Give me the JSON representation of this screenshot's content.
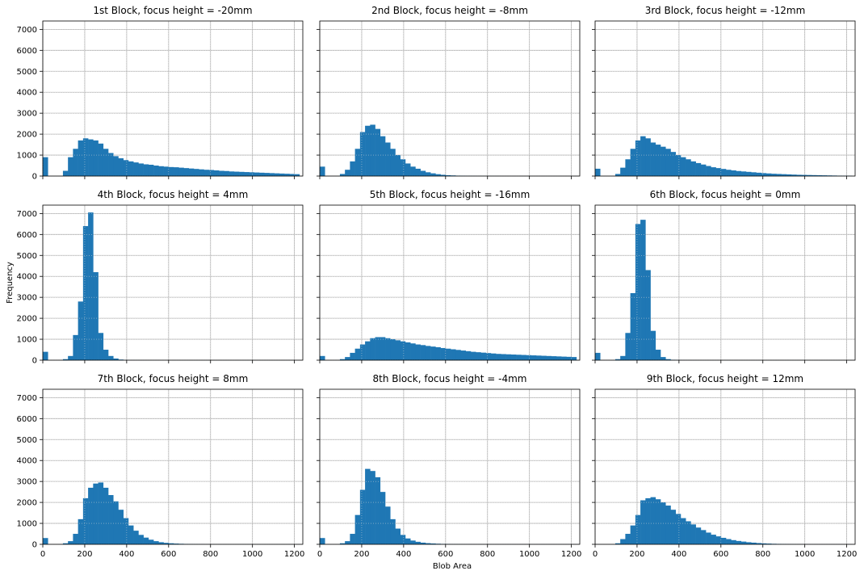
{
  "figure": {
    "xlabel": "Blob Area",
    "ylabel": "Frequency",
    "xlim": [
      0,
      1240
    ],
    "ylim": [
      0,
      7400
    ],
    "xticks": [
      0,
      200,
      400,
      600,
      800,
      1000,
      1200
    ],
    "yticks": [
      0,
      1000,
      2000,
      3000,
      4000,
      5000,
      6000,
      7000
    ],
    "bar_color": "#1f77b4",
    "grid": true,
    "shared_axes": true
  },
  "chart_data": [
    {
      "type": "bar",
      "title": "1st Block, focus height = -20mm",
      "bin_width": 24,
      "bin_starts": [
        0,
        24,
        48,
        72,
        96,
        120,
        144,
        168,
        192,
        216,
        240,
        264,
        288,
        312,
        336,
        360,
        384,
        408,
        432,
        456,
        480,
        504,
        528,
        552,
        576,
        600,
        624,
        648,
        672,
        696,
        720,
        744,
        768,
        792,
        816,
        840,
        864,
        888,
        912,
        936,
        960,
        984,
        1008,
        1032,
        1056,
        1080,
        1104,
        1128,
        1152,
        1176,
        1200
      ],
      "values": [
        900,
        0,
        0,
        0,
        250,
        900,
        1300,
        1700,
        1800,
        1750,
        1700,
        1550,
        1300,
        1100,
        950,
        850,
        760,
        700,
        650,
        600,
        560,
        540,
        500,
        470,
        450,
        430,
        420,
        400,
        380,
        360,
        340,
        320,
        300,
        290,
        270,
        250,
        240,
        220,
        210,
        200,
        190,
        180,
        170,
        160,
        150,
        140,
        130,
        120,
        110,
        100,
        90
      ]
    },
    {
      "type": "bar",
      "title": "2nd Block, focus height = -8mm",
      "bin_width": 24,
      "bin_starts": [
        0,
        24,
        48,
        72,
        96,
        120,
        144,
        168,
        192,
        216,
        240,
        264,
        288,
        312,
        336,
        360,
        384,
        408,
        432,
        456,
        480,
        504,
        528,
        552,
        576,
        600,
        624,
        648,
        672,
        696,
        720,
        744,
        768,
        792,
        816,
        840,
        864,
        888,
        912,
        936,
        960,
        984,
        1008,
        1032,
        1056,
        1080,
        1104,
        1128,
        1152,
        1176,
        1200
      ],
      "values": [
        450,
        0,
        0,
        0,
        100,
        300,
        700,
        1300,
        2100,
        2400,
        2450,
        2250,
        1900,
        1600,
        1300,
        1000,
        800,
        600,
        450,
        350,
        250,
        180,
        130,
        90,
        60,
        40,
        30,
        20,
        15,
        10,
        8,
        6,
        5,
        4,
        3,
        3,
        2,
        2,
        2,
        2,
        2,
        2,
        2,
        2,
        2,
        2,
        2,
        2,
        2,
        2,
        2
      ]
    },
    {
      "type": "bar",
      "title": "3rd Block, focus height = -12mm",
      "bin_width": 24,
      "bin_starts": [
        0,
        24,
        48,
        72,
        96,
        120,
        144,
        168,
        192,
        216,
        240,
        264,
        288,
        312,
        336,
        360,
        384,
        408,
        432,
        456,
        480,
        504,
        528,
        552,
        576,
        600,
        624,
        648,
        672,
        696,
        720,
        744,
        768,
        792,
        816,
        840,
        864,
        888,
        912,
        936,
        960,
        984,
        1008,
        1032,
        1056,
        1080,
        1104,
        1128,
        1152,
        1176,
        1200
      ],
      "values": [
        350,
        0,
        0,
        0,
        100,
        400,
        800,
        1300,
        1700,
        1900,
        1800,
        1600,
        1500,
        1400,
        1300,
        1150,
        1000,
        900,
        800,
        700,
        620,
        550,
        480,
        420,
        380,
        340,
        300,
        270,
        240,
        220,
        200,
        180,
        160,
        140,
        125,
        110,
        100,
        90,
        80,
        70,
        60,
        55,
        50,
        45,
        40,
        35,
        30,
        25,
        20,
        18,
        15
      ]
    },
    {
      "type": "bar",
      "title": "4th Block, focus height = 4mm",
      "bin_width": 24,
      "bin_starts": [
        0,
        24,
        48,
        72,
        96,
        120,
        144,
        168,
        192,
        216,
        240,
        264,
        288,
        312,
        336,
        360,
        384,
        408,
        432,
        456,
        480,
        504,
        528,
        552,
        576,
        600,
        624,
        648,
        672,
        696,
        720,
        744,
        768,
        792,
        816,
        840,
        864,
        888,
        912,
        936,
        960,
        984,
        1008,
        1032,
        1056,
        1080,
        1104,
        1128,
        1152,
        1176,
        1200
      ],
      "values": [
        400,
        0,
        0,
        0,
        50,
        200,
        1200,
        2800,
        6400,
        7050,
        4200,
        1300,
        500,
        200,
        80,
        30,
        10,
        5,
        3,
        2,
        1,
        1,
        1,
        1,
        1,
        1,
        1,
        1,
        1,
        1,
        1,
        1,
        1,
        1,
        1,
        1,
        1,
        1,
        1,
        1,
        1,
        1,
        1,
        1,
        1,
        1,
        1,
        1,
        1,
        1,
        1
      ]
    },
    {
      "type": "bar",
      "title": "5th Block, focus height = -16mm",
      "bin_width": 24,
      "bin_starts": [
        0,
        24,
        48,
        72,
        96,
        120,
        144,
        168,
        192,
        216,
        240,
        264,
        288,
        312,
        336,
        360,
        384,
        408,
        432,
        456,
        480,
        504,
        528,
        552,
        576,
        600,
        624,
        648,
        672,
        696,
        720,
        744,
        768,
        792,
        816,
        840,
        864,
        888,
        912,
        936,
        960,
        984,
        1008,
        1032,
        1056,
        1080,
        1104,
        1128,
        1152,
        1176,
        1200
      ],
      "values": [
        200,
        0,
        0,
        0,
        50,
        150,
        350,
        550,
        750,
        900,
        1050,
        1100,
        1100,
        1050,
        1000,
        950,
        900,
        850,
        800,
        750,
        720,
        680,
        650,
        620,
        580,
        550,
        520,
        490,
        460,
        430,
        400,
        380,
        360,
        340,
        320,
        300,
        290,
        280,
        270,
        260,
        250,
        240,
        230,
        220,
        210,
        200,
        190,
        180,
        170,
        160,
        150
      ]
    },
    {
      "type": "bar",
      "title": "6th Block, focus height = 0mm",
      "bin_width": 24,
      "bin_starts": [
        0,
        24,
        48,
        72,
        96,
        120,
        144,
        168,
        192,
        216,
        240,
        264,
        288,
        312,
        336,
        360,
        384,
        408,
        432,
        456,
        480,
        504,
        528,
        552,
        576,
        600,
        624,
        648,
        672,
        696,
        720,
        744,
        768,
        792,
        816,
        840,
        864,
        888,
        912,
        936,
        960,
        984,
        1008,
        1032,
        1056,
        1080,
        1104,
        1128,
        1152,
        1176,
        1200
      ],
      "values": [
        350,
        0,
        0,
        0,
        50,
        200,
        1300,
        3200,
        6500,
        6700,
        4300,
        1400,
        500,
        150,
        50,
        20,
        10,
        5,
        3,
        2,
        1,
        1,
        1,
        1,
        1,
        1,
        1,
        1,
        1,
        1,
        1,
        1,
        1,
        1,
        1,
        1,
        1,
        1,
        1,
        1,
        1,
        1,
        1,
        1,
        1,
        1,
        1,
        1,
        1,
        1,
        1
      ]
    },
    {
      "type": "bar",
      "title": "7th Block, focus height = 8mm",
      "bin_width": 24,
      "bin_starts": [
        0,
        24,
        48,
        72,
        96,
        120,
        144,
        168,
        192,
        216,
        240,
        264,
        288,
        312,
        336,
        360,
        384,
        408,
        432,
        456,
        480,
        504,
        528,
        552,
        576,
        600,
        624,
        648,
        672,
        696,
        720,
        744,
        768,
        792,
        816,
        840,
        864,
        888,
        912,
        936,
        960,
        984,
        1008,
        1032,
        1056,
        1080,
        1104,
        1128,
        1152,
        1176,
        1200
      ],
      "values": [
        300,
        0,
        0,
        0,
        50,
        150,
        500,
        1200,
        2200,
        2700,
        2900,
        2950,
        2700,
        2350,
        2050,
        1650,
        1250,
        900,
        650,
        450,
        320,
        220,
        150,
        100,
        70,
        50,
        35,
        25,
        18,
        12,
        8,
        5,
        3,
        2,
        1,
        1,
        1,
        1,
        1,
        1,
        1,
        1,
        1,
        1,
        1,
        1,
        1,
        1,
        1,
        1,
        1
      ]
    },
    {
      "type": "bar",
      "title": "8th Block, focus height = -4mm",
      "bin_width": 24,
      "bin_starts": [
        0,
        24,
        48,
        72,
        96,
        120,
        144,
        168,
        192,
        216,
        240,
        264,
        288,
        312,
        336,
        360,
        384,
        408,
        432,
        456,
        480,
        504,
        528,
        552,
        576,
        600,
        624,
        648,
        672,
        696,
        720,
        744,
        768,
        792,
        816,
        840,
        864,
        888,
        912,
        936,
        960,
        984,
        1008,
        1032,
        1056,
        1080,
        1104,
        1128,
        1152,
        1176,
        1200
      ],
      "values": [
        300,
        0,
        0,
        0,
        50,
        150,
        500,
        1400,
        2600,
        3600,
        3500,
        3200,
        2500,
        1800,
        1200,
        750,
        450,
        280,
        180,
        120,
        80,
        55,
        40,
        28,
        20,
        15,
        10,
        8,
        6,
        5,
        4,
        3,
        3,
        2,
        2,
        2,
        2,
        2,
        2,
        2,
        2,
        2,
        2,
        2,
        2,
        2,
        2,
        2,
        2,
        2,
        2
      ]
    },
    {
      "type": "bar",
      "title": "9th Block, focus height = 12mm",
      "bin_width": 24,
      "bin_starts": [
        0,
        24,
        48,
        72,
        96,
        120,
        144,
        168,
        192,
        216,
        240,
        264,
        288,
        312,
        336,
        360,
        384,
        408,
        432,
        456,
        480,
        504,
        528,
        552,
        576,
        600,
        624,
        648,
        672,
        696,
        720,
        744,
        768,
        792,
        816,
        840,
        864,
        888,
        912,
        936,
        960,
        984,
        1008,
        1032,
        1056,
        1080,
        1104,
        1128,
        1152,
        1176,
        1200
      ],
      "values": [
        0,
        0,
        0,
        0,
        50,
        250,
        500,
        900,
        1400,
        2100,
        2200,
        2250,
        2150,
        2000,
        1850,
        1650,
        1450,
        1250,
        1100,
        950,
        800,
        680,
        560,
        460,
        380,
        310,
        250,
        200,
        160,
        130,
        100,
        80,
        60,
        45,
        35,
        25,
        20,
        15,
        10,
        8,
        6,
        5,
        4,
        3,
        2,
        2,
        2,
        2,
        2,
        2,
        2
      ]
    }
  ]
}
